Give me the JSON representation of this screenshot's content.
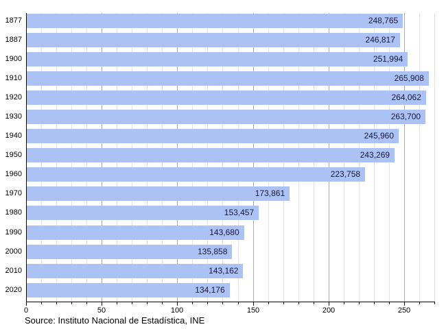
{
  "chart_data": {
    "type": "bar",
    "orientation": "horizontal",
    "title": "",
    "xlabel": "",
    "ylabel": "",
    "categories": [
      "1877",
      "1887",
      "1900",
      "1910",
      "1920",
      "1930",
      "1940",
      "1950",
      "1960",
      "1970",
      "1980",
      "1990",
      "2000",
      "2010",
      "2020"
    ],
    "values": [
      248765,
      246817,
      251994,
      265908,
      264062,
      263700,
      245960,
      243269,
      223758,
      173861,
      153457,
      143680,
      135858,
      143162,
      134176
    ],
    "value_labels": [
      "248,765",
      "246,817",
      "251,994",
      "265,908",
      "264,062",
      "263,700",
      "245,960",
      "243,269",
      "223,758",
      "173,861",
      "153,457",
      "143,680",
      "135,858",
      "143,162",
      "134,176"
    ],
    "xlim": [
      0,
      270
    ],
    "x_major_ticks": [
      0,
      50,
      100,
      150,
      200,
      250
    ],
    "x_major_tick_labels": [
      "0",
      "50",
      "100",
      "150",
      "200",
      "250"
    ],
    "x_minor_step": 10,
    "grid": "vertical-minor-and-major",
    "legend": "none",
    "source": "Source: Instituto Nacional de Estadística, INE",
    "colors": {
      "bar": "#adc2f4",
      "value_text": "#15153d",
      "grid_minor": "#e3e3e3",
      "grid_major": "#ababab",
      "axis": "#000000",
      "background": "#ffffff"
    }
  }
}
